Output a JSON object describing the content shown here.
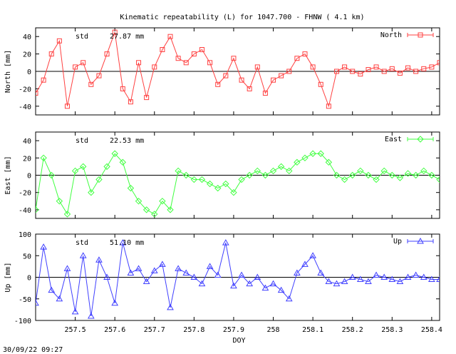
{
  "title": "Kinematic repeatability (L) for 1047.700 - FHNW  (  4.1 km)",
  "footer_timestamp": "30/09/22 09:27",
  "chart_data": [
    {
      "type": "line",
      "ylabel": "North [mm]",
      "ylim": [
        -50,
        50
      ],
      "yticks": [
        -40,
        -20,
        0,
        20,
        40
      ],
      "xlim": [
        257.4,
        258.42
      ],
      "legend": "North",
      "legend_placement": "top-right",
      "marker": "square",
      "color": "#ff4040",
      "std_label": "std",
      "std_value": "27.87 mm",
      "x": [
        257.4,
        257.42,
        257.44,
        257.46,
        257.48,
        257.5,
        257.52,
        257.54,
        257.56,
        257.58,
        257.6,
        257.62,
        257.64,
        257.66,
        257.68,
        257.7,
        257.72,
        257.74,
        257.76,
        257.78,
        257.8,
        257.82,
        257.84,
        257.86,
        257.88,
        257.9,
        257.92,
        257.94,
        257.96,
        257.98,
        258.0,
        258.02,
        258.04,
        258.06,
        258.08,
        258.1,
        258.12,
        258.14,
        258.16,
        258.18,
        258.2,
        258.22,
        258.24,
        258.26,
        258.28,
        258.3,
        258.32,
        258.34,
        258.36,
        258.38,
        258.4,
        258.42
      ],
      "y": [
        -25,
        -10,
        20,
        35,
        -40,
        5,
        10,
        -15,
        -5,
        20,
        45,
        -20,
        -35,
        10,
        -30,
        5,
        25,
        40,
        15,
        10,
        20,
        25,
        10,
        -15,
        -5,
        15,
        -10,
        -20,
        5,
        -25,
        -10,
        -5,
        0,
        15,
        20,
        5,
        -15,
        -40,
        0,
        5,
        0,
        -3,
        2,
        5,
        0,
        3,
        -2,
        4,
        0,
        3,
        5,
        10
      ]
    },
    {
      "type": "line",
      "ylabel": "East [mm]",
      "ylim": [
        -50,
        50
      ],
      "yticks": [
        -40,
        -20,
        0,
        20,
        40
      ],
      "xlim": [
        257.4,
        258.42
      ],
      "legend": "East",
      "legend_placement": "top-right",
      "marker": "diamond",
      "color": "#40ff40",
      "std_label": "std",
      "std_value": "22.53 mm",
      "x": [
        257.4,
        257.42,
        257.44,
        257.46,
        257.48,
        257.5,
        257.52,
        257.54,
        257.56,
        257.58,
        257.6,
        257.62,
        257.64,
        257.66,
        257.68,
        257.7,
        257.72,
        257.74,
        257.76,
        257.78,
        257.8,
        257.82,
        257.84,
        257.86,
        257.88,
        257.9,
        257.92,
        257.94,
        257.96,
        257.98,
        258.0,
        258.02,
        258.04,
        258.06,
        258.08,
        258.1,
        258.12,
        258.14,
        258.16,
        258.18,
        258.2,
        258.22,
        258.24,
        258.26,
        258.28,
        258.3,
        258.32,
        258.34,
        258.36,
        258.38,
        258.4,
        258.42
      ],
      "y": [
        -40,
        20,
        0,
        -30,
        -45,
        5,
        10,
        -20,
        -5,
        10,
        25,
        15,
        -15,
        -30,
        -40,
        -45,
        -30,
        -40,
        5,
        0,
        -5,
        -5,
        -10,
        -15,
        -10,
        -20,
        -5,
        0,
        5,
        0,
        5,
        10,
        5,
        15,
        20,
        25,
        25,
        15,
        0,
        -5,
        0,
        5,
        0,
        -5,
        5,
        0,
        -3,
        2,
        0,
        5,
        0,
        -5
      ]
    },
    {
      "type": "line",
      "ylabel": "Up [mm]",
      "ylim": [
        -100,
        100
      ],
      "yticks": [
        -100,
        -50,
        0,
        50,
        100
      ],
      "xlim": [
        257.4,
        258.42
      ],
      "xticks": [
        257.5,
        257.6,
        257.7,
        257.8,
        257.9,
        258,
        258.1,
        258.2,
        258.3,
        258.4
      ],
      "xlabel": "DOY",
      "legend": "Up",
      "legend_placement": "top-right",
      "marker": "triangle",
      "color": "#4040ff",
      "std_label": "std",
      "std_value": "51.10 mm",
      "x": [
        257.4,
        257.42,
        257.44,
        257.46,
        257.48,
        257.5,
        257.52,
        257.54,
        257.56,
        257.58,
        257.6,
        257.62,
        257.64,
        257.66,
        257.68,
        257.7,
        257.72,
        257.74,
        257.76,
        257.78,
        257.8,
        257.82,
        257.84,
        257.86,
        257.88,
        257.9,
        257.92,
        257.94,
        257.96,
        257.98,
        258.0,
        258.02,
        258.04,
        258.06,
        258.08,
        258.1,
        258.12,
        258.14,
        258.16,
        258.18,
        258.2,
        258.22,
        258.24,
        258.26,
        258.28,
        258.3,
        258.32,
        258.34,
        258.36,
        258.38,
        258.4,
        258.42
      ],
      "y": [
        -60,
        70,
        -30,
        -50,
        20,
        -80,
        50,
        -90,
        40,
        0,
        -60,
        80,
        10,
        20,
        -10,
        15,
        30,
        -70,
        20,
        10,
        0,
        -15,
        25,
        5,
        80,
        -20,
        5,
        -15,
        0,
        -25,
        -15,
        -30,
        -50,
        10,
        30,
        50,
        10,
        -10,
        -15,
        -10,
        0,
        -5,
        -10,
        5,
        0,
        -5,
        -10,
        0,
        5,
        0,
        -5,
        -5
      ]
    }
  ]
}
